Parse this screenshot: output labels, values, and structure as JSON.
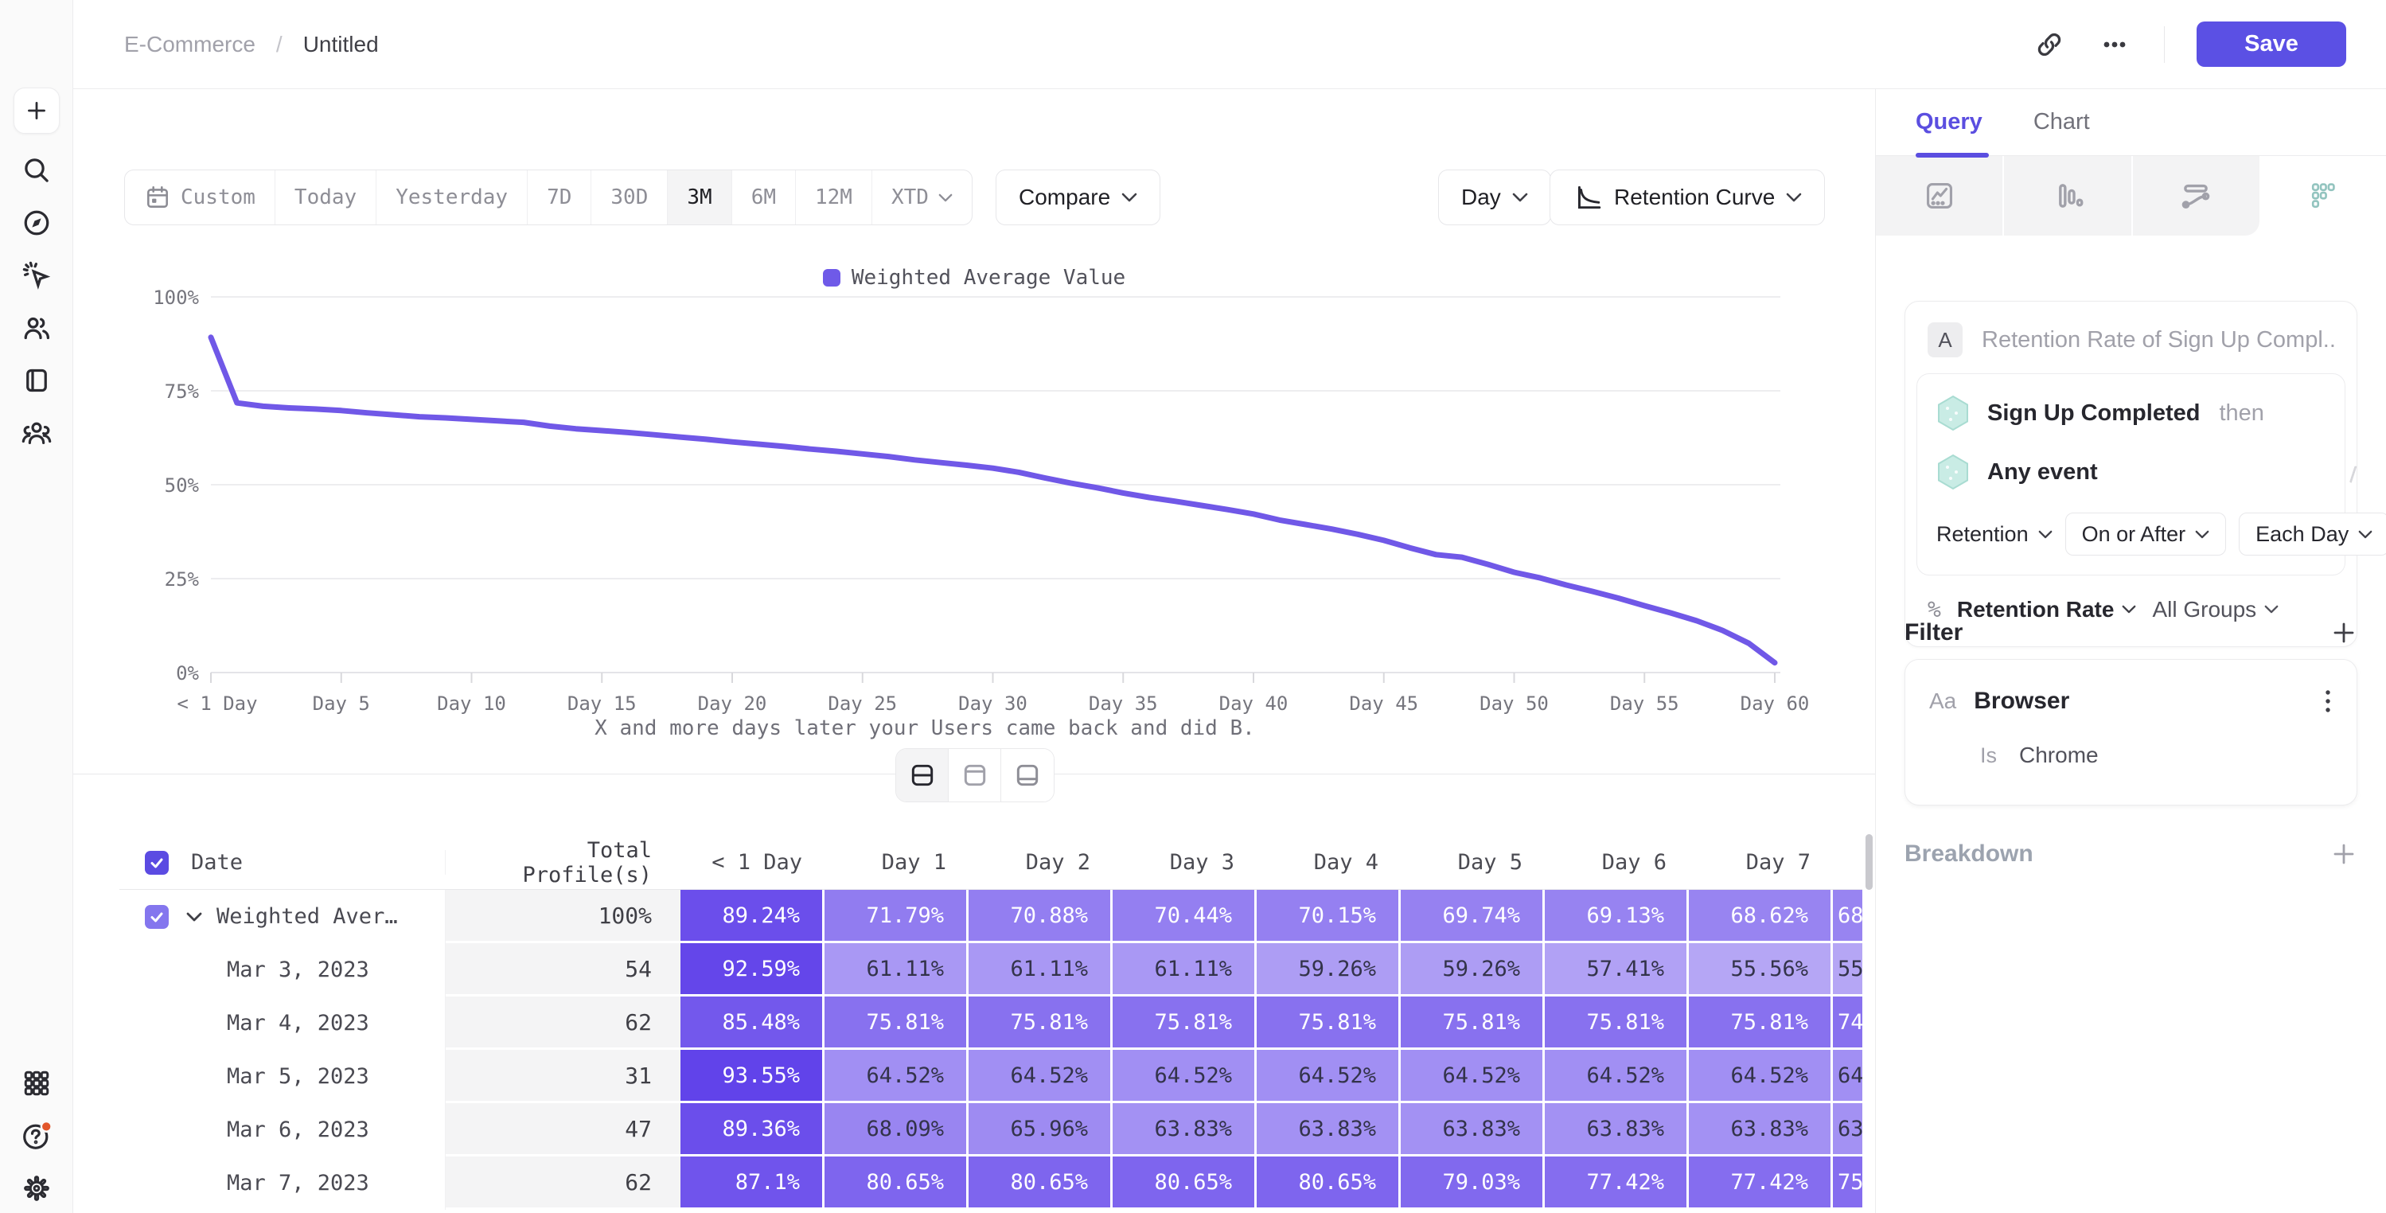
{
  "colors": {
    "accent": "#5b50e4",
    "active_tab": "#5b4ee0",
    "line": "#7058e7",
    "legend_swatch": "#6f5ae8",
    "teal_fill": "#c9ece5",
    "teal_stroke": "#a9dcd2",
    "red_badge": "#e2562b"
  },
  "header": {
    "breadcrumb_project": "E-Commerce",
    "breadcrumb_sep": "/",
    "breadcrumb_page": "Untitled",
    "save": "Save"
  },
  "rail": {
    "top": [
      "plus-icon",
      "search-icon",
      "compass-icon",
      "cursor-sparkle-icon",
      "users-icon",
      "notebook-icon",
      "user-group-icon"
    ],
    "bottom": [
      "apps-grid-icon",
      "help-circle-icon",
      "settings-gear-icon"
    ]
  },
  "toolbar": {
    "ranges": [
      {
        "label": "Custom",
        "icon": "calendar-icon"
      },
      {
        "label": "Today"
      },
      {
        "label": "Yesterday"
      },
      {
        "label": "7D"
      },
      {
        "label": "30D"
      },
      {
        "label": "3M",
        "active": true
      },
      {
        "label": "6M"
      },
      {
        "label": "12M"
      },
      {
        "label": "XTD",
        "chevron": true
      }
    ],
    "compare": "Compare",
    "granularity": "Day",
    "view": "Retention Curve"
  },
  "chart_data": {
    "type": "line",
    "series": [
      {
        "name": "Weighted Average Value",
        "points": [
          [
            0,
            89.24
          ],
          [
            1,
            71.79
          ],
          [
            2,
            70.88
          ],
          [
            3,
            70.44
          ],
          [
            4,
            70.15
          ],
          [
            5,
            69.74
          ],
          [
            6,
            69.13
          ],
          [
            7,
            68.62
          ],
          [
            8,
            68.1
          ],
          [
            9,
            67.8
          ],
          [
            10,
            67.4
          ],
          [
            11,
            67.0
          ],
          [
            12,
            66.6
          ],
          [
            13,
            65.6
          ],
          [
            14,
            64.9
          ],
          [
            15,
            64.4
          ],
          [
            16,
            63.9
          ],
          [
            17,
            63.3
          ],
          [
            18,
            62.7
          ],
          [
            19,
            62.1
          ],
          [
            20,
            61.4
          ],
          [
            21,
            60.8
          ],
          [
            22,
            60.2
          ],
          [
            23,
            59.5
          ],
          [
            24,
            58.9
          ],
          [
            25,
            58.2
          ],
          [
            26,
            57.5
          ],
          [
            27,
            56.6
          ],
          [
            28,
            55.9
          ],
          [
            29,
            55.2
          ],
          [
            30,
            54.4
          ],
          [
            31,
            53.3
          ],
          [
            32,
            51.8
          ],
          [
            33,
            50.4
          ],
          [
            34,
            49.2
          ],
          [
            35,
            47.8
          ],
          [
            36,
            46.6
          ],
          [
            37,
            45.6
          ],
          [
            38,
            44.5
          ],
          [
            39,
            43.4
          ],
          [
            40,
            42.2
          ],
          [
            41,
            40.6
          ],
          [
            42,
            39.4
          ],
          [
            43,
            38.2
          ],
          [
            44,
            36.8
          ],
          [
            45,
            35.2
          ],
          [
            46,
            33.2
          ],
          [
            47,
            31.4
          ],
          [
            48,
            30.7
          ],
          [
            49,
            28.8
          ],
          [
            50,
            26.7
          ],
          [
            51,
            25.2
          ],
          [
            52,
            23.3
          ],
          [
            53,
            21.6
          ],
          [
            54,
            19.8
          ],
          [
            55,
            17.8
          ],
          [
            56,
            15.9
          ],
          [
            57,
            13.8
          ],
          [
            58,
            11.2
          ],
          [
            59,
            7.8
          ],
          [
            60,
            2.6
          ]
        ]
      }
    ],
    "y_ticks": [
      {
        "v": 100,
        "label": "100%"
      },
      {
        "v": 75,
        "label": "75%"
      },
      {
        "v": 50,
        "label": "50%"
      },
      {
        "v": 25,
        "label": "25%"
      },
      {
        "v": 0,
        "label": "0%"
      }
    ],
    "x_ticks": [
      {
        "d": 0,
        "label": "< 1 Day"
      },
      {
        "d": 5,
        "label": "Day 5"
      },
      {
        "d": 10,
        "label": "Day 10"
      },
      {
        "d": 15,
        "label": "Day 15"
      },
      {
        "d": 20,
        "label": "Day 20"
      },
      {
        "d": 25,
        "label": "Day 25"
      },
      {
        "d": 30,
        "label": "Day 30"
      },
      {
        "d": 35,
        "label": "Day 35"
      },
      {
        "d": 40,
        "label": "Day 40"
      },
      {
        "d": 45,
        "label": "Day 45"
      },
      {
        "d": 50,
        "label": "Day 50"
      },
      {
        "d": 55,
        "label": "Day 55"
      },
      {
        "d": 60,
        "label": "Day 60"
      }
    ],
    "ylim": [
      0,
      100
    ],
    "xlim": [
      0,
      60
    ],
    "grid": "horizontal",
    "legend_position": "top-center",
    "caption": "X and more days later your Users came back and did B."
  },
  "table": {
    "header": {
      "date": "Date",
      "total": "Total Profile(s)",
      "days": [
        "< 1 Day",
        "Day 1",
        "Day 2",
        "Day 3",
        "Day 4",
        "Day 5",
        "Day 6",
        "Day 7"
      ]
    },
    "rows": [
      {
        "label": "Weighted Average ...",
        "total": "100%",
        "values": [
          89.24,
          71.79,
          70.88,
          70.44,
          70.15,
          69.74,
          69.13,
          68.62
        ],
        "overflow": "68",
        "selected": true
      },
      {
        "label": "Mar 3, 2023",
        "total": "54",
        "values": [
          92.59,
          61.11,
          61.11,
          61.11,
          59.26,
          59.26,
          57.41,
          55.56
        ],
        "overflow": "55"
      },
      {
        "label": "Mar 4, 2023",
        "total": "62",
        "values": [
          85.48,
          75.81,
          75.81,
          75.81,
          75.81,
          75.81,
          75.81,
          75.81
        ],
        "overflow": "74"
      },
      {
        "label": "Mar 5, 2023",
        "total": "31",
        "values": [
          93.55,
          64.52,
          64.52,
          64.52,
          64.52,
          64.52,
          64.52,
          64.52
        ],
        "overflow": "64"
      },
      {
        "label": "Mar 6, 2023",
        "total": "47",
        "values": [
          89.36,
          68.09,
          65.96,
          63.83,
          63.83,
          63.83,
          63.83,
          63.83
        ],
        "overflow": "63"
      },
      {
        "label": "Mar 7, 2023",
        "total": "62",
        "values": [
          87.1,
          80.65,
          80.65,
          80.65,
          80.65,
          79.03,
          77.42,
          77.42
        ],
        "overflow": "75"
      }
    ]
  },
  "panel": {
    "tabs": [
      {
        "label": "Query",
        "active": true
      },
      {
        "label": "Chart",
        "active": false
      }
    ],
    "chart_type_tabs": [
      {
        "icon": "insights-chart-icon",
        "active": false
      },
      {
        "icon": "bar-chart-icon",
        "active": false
      },
      {
        "icon": "flows-icon",
        "active": false
      },
      {
        "icon": "retention-grid-icon",
        "active": true
      }
    ],
    "query": {
      "badge": "A",
      "title": "Retention Rate of Sign Up Compl...",
      "event1": "Sign Up Completed",
      "then": "then",
      "event2": "Any event",
      "retention": "Retention",
      "on_or_after": "On or After",
      "each_day": "Each Day",
      "metric_prefix": "%",
      "metric": "Retention Rate",
      "groups": "All Groups"
    },
    "filter": {
      "title": "Filter",
      "prop_type": "Aa",
      "prop": "Browser",
      "op": "Is",
      "value": "Chrome"
    },
    "breakdown": {
      "title": "Breakdown"
    }
  }
}
